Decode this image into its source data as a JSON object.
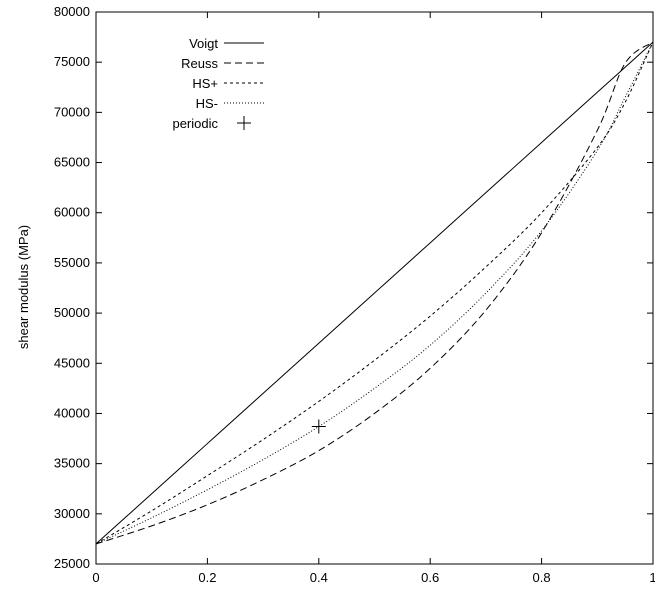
{
  "chart_data": {
    "type": "line",
    "title": "",
    "xlabel": "",
    "ylabel": "shear modulus (MPa)",
    "xlim": [
      0,
      1
    ],
    "ylim": [
      25000,
      80000
    ],
    "grid": false,
    "legend_position": "top-left",
    "x_ticks": [
      "0",
      "0.2",
      "0.4",
      "0.6",
      "0.8",
      "1"
    ],
    "x_tick_values": [
      0,
      0.2,
      0.4,
      0.6,
      0.8,
      1
    ],
    "y_ticks": [
      "25000",
      "30000",
      "35000",
      "40000",
      "45000",
      "50000",
      "55000",
      "60000",
      "65000",
      "70000",
      "75000",
      "80000"
    ],
    "y_tick_values": [
      25000,
      30000,
      35000,
      40000,
      45000,
      50000,
      55000,
      60000,
      65000,
      70000,
      75000,
      80000
    ],
    "series": [
      {
        "name": "Voigt",
        "style": "solid",
        "x": [
          0,
          0.1,
          0.2,
          0.3,
          0.4,
          0.5,
          0.6,
          0.7,
          0.8,
          0.9,
          1
        ],
        "y": [
          27000,
          32000,
          37000,
          42000,
          47000,
          52000,
          57000,
          62000,
          67000,
          72000,
          77000
        ]
      },
      {
        "name": "Reuss",
        "style": "dashed",
        "x": [
          0,
          0.1,
          0.2,
          0.3,
          0.4,
          0.5,
          0.6,
          0.7,
          0.8,
          0.9,
          0.95,
          1
        ],
        "y": [
          27000,
          28800,
          30900,
          33400,
          36300,
          40000,
          44500,
          50300,
          58000,
          68200,
          74900,
          77000
        ]
      },
      {
        "name": "HS+",
        "style": "short-dashed",
        "x": [
          0,
          0.1,
          0.2,
          0.3,
          0.4,
          0.5,
          0.6,
          0.7,
          0.8,
          0.9,
          0.95,
          1
        ],
        "y": [
          27000,
          30300,
          33800,
          37400,
          41200,
          45300,
          49700,
          54600,
          60000,
          66500,
          71000,
          77000
        ]
      },
      {
        "name": "HS-",
        "style": "dotted",
        "x": [
          0,
          0.1,
          0.2,
          0.3,
          0.4,
          0.5,
          0.6,
          0.7,
          0.8,
          0.9,
          0.95,
          1
        ],
        "y": [
          27000,
          29600,
          32400,
          35400,
          38700,
          42500,
          46800,
          52000,
          58200,
          66200,
          71500,
          77000
        ]
      }
    ],
    "points": [
      {
        "name": "periodic",
        "marker": "plus",
        "x": 0.4,
        "y": 38700
      }
    ]
  }
}
